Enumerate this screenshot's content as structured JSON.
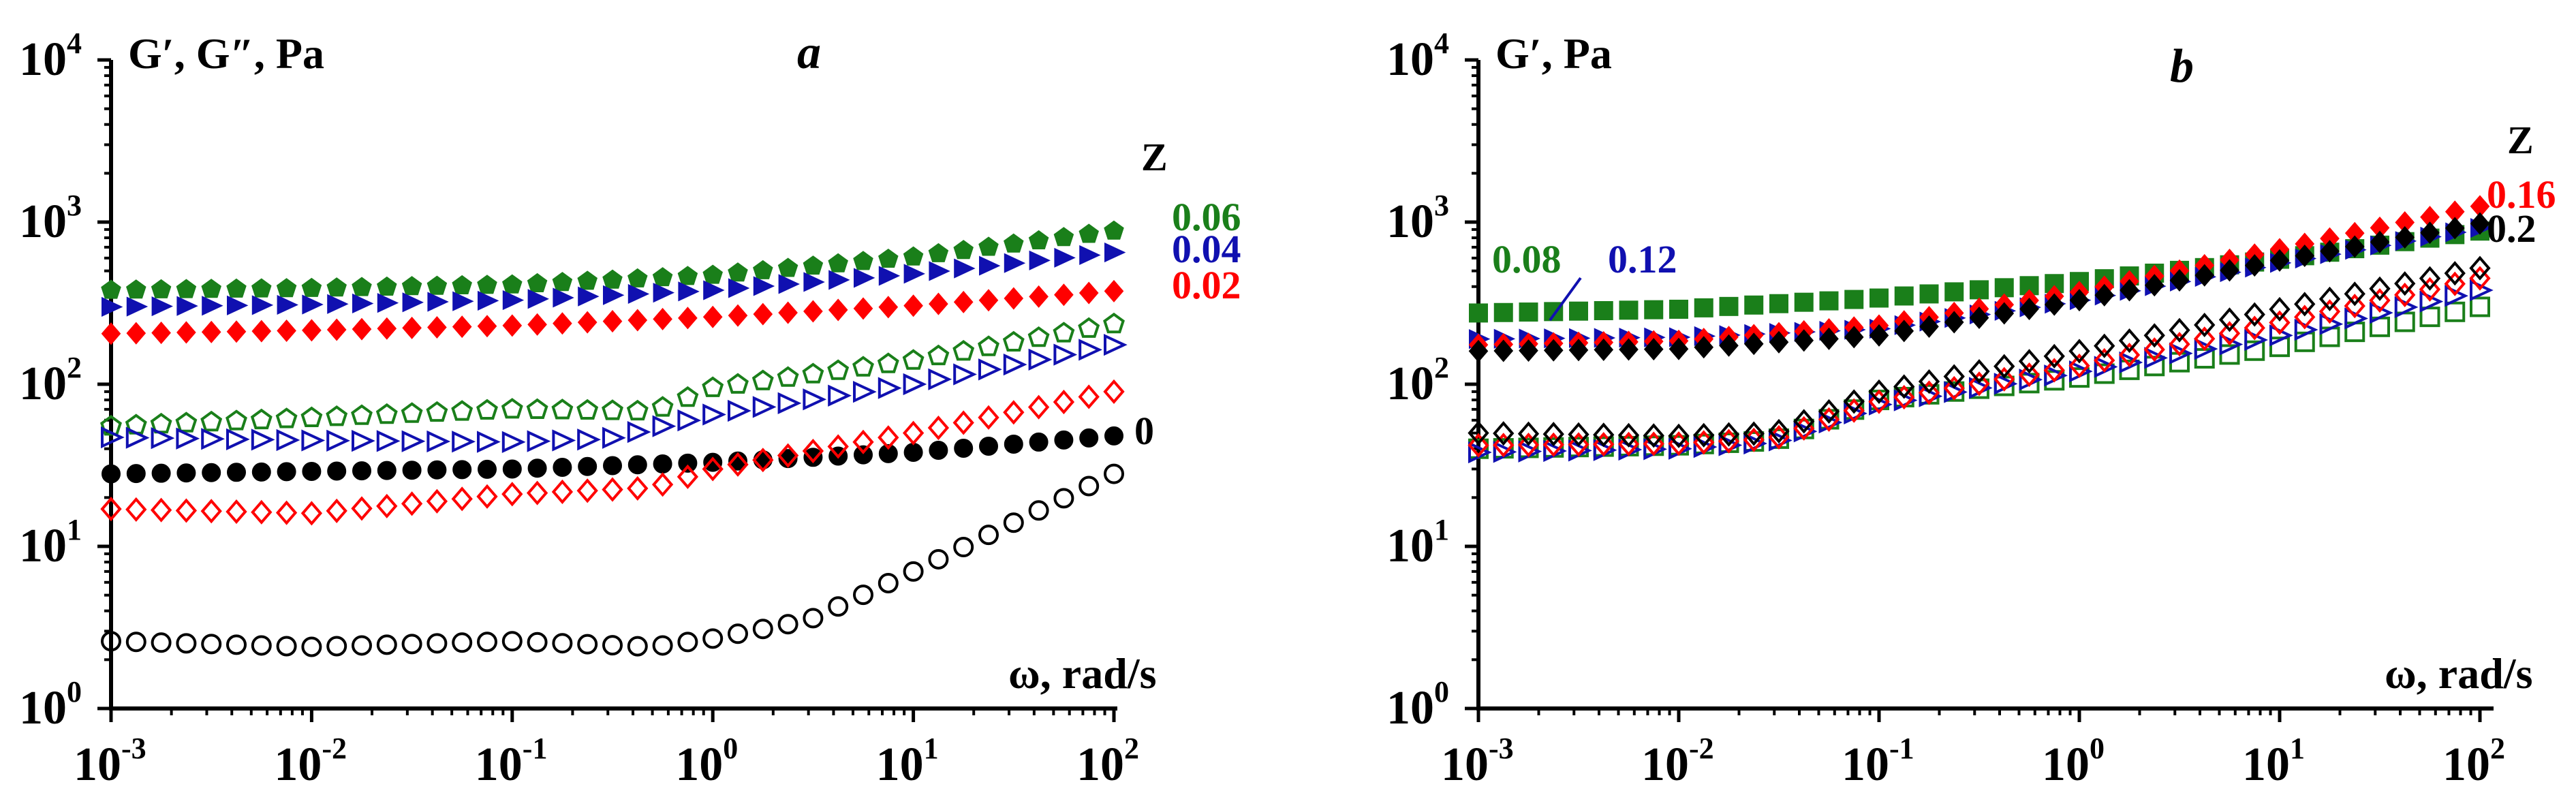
{
  "chart_data": [
    {
      "type": "scatter",
      "title": "a",
      "ylabel": "G′,  G″, Pa",
      "xlabel": "ω, rad/s",
      "legend_title": "Z",
      "x_scale": "log",
      "y_scale": "log",
      "xlim": [
        0.001,
        100
      ],
      "ylim": [
        1,
        10000
      ],
      "x_ticks": [
        {
          "base": "10",
          "exp": "-3"
        },
        {
          "base": "10",
          "exp": "-2"
        },
        {
          "base": "10",
          "exp": "-1"
        },
        {
          "base": "10",
          "exp": "0"
        },
        {
          "base": "10",
          "exp": "1"
        },
        {
          "base": "10",
          "exp": "2"
        }
      ],
      "y_ticks": [
        {
          "base": "10",
          "exp": "0"
        },
        {
          "base": "10",
          "exp": "1"
        },
        {
          "base": "10",
          "exp": "2"
        },
        {
          "base": "10",
          "exp": "3"
        },
        {
          "base": "10",
          "exp": "4"
        }
      ],
      "series": [
        {
          "name": "G′ Z=0.06",
          "label": "0.06",
          "color": "#1a7f1a",
          "marker": "pentagon",
          "filled": true,
          "points": [
            [
              0.001,
              380
            ],
            [
              0.01,
              390
            ],
            [
              0.1,
              410
            ],
            [
              1,
              470
            ],
            [
              10,
              610
            ],
            [
              100,
              880
            ]
          ]
        },
        {
          "name": "G′ Z=0.04",
          "label": "0.04",
          "color": "#1010b0",
          "marker": "triangle-right",
          "filled": true,
          "points": [
            [
              0.001,
              300
            ],
            [
              0.01,
              310
            ],
            [
              0.1,
              330
            ],
            [
              1,
              380
            ],
            [
              10,
              480
            ],
            [
              100,
              650
            ]
          ]
        },
        {
          "name": "G′ Z=0.02",
          "label": "0.02",
          "color": "#ff0000",
          "marker": "diamond",
          "filled": true,
          "points": [
            [
              0.001,
              205
            ],
            [
              0.01,
              215
            ],
            [
              0.1,
              230
            ],
            [
              1,
              260
            ],
            [
              10,
              305
            ],
            [
              100,
              375
            ]
          ]
        },
        {
          "name": "G′ Z=0",
          "label": "0",
          "color": "#000000",
          "marker": "circle",
          "filled": true,
          "points": [
            [
              0.001,
              28
            ],
            [
              0.01,
              29
            ],
            [
              0.1,
              30
            ],
            [
              1,
              33
            ],
            [
              10,
              38
            ],
            [
              100,
              48
            ]
          ]
        },
        {
          "name": "G″ Z=0.06",
          "label": "",
          "color": "#1a7f1a",
          "marker": "pentagon",
          "filled": false,
          "points": [
            [
              0.001,
              55
            ],
            [
              0.01,
              62
            ],
            [
              0.1,
              70
            ],
            [
              0.5,
              68
            ],
            [
              1,
              95
            ],
            [
              10,
              140
            ],
            [
              100,
              235
            ]
          ]
        },
        {
          "name": "G″ Z=0.04",
          "label": "",
          "color": "#1010b0",
          "marker": "triangle-right",
          "filled": false,
          "points": [
            [
              0.001,
              47
            ],
            [
              0.01,
              45
            ],
            [
              0.1,
              44
            ],
            [
              0.3,
              46
            ],
            [
              1,
              65
            ],
            [
              10,
              100
            ],
            [
              100,
              175
            ]
          ]
        },
        {
          "name": "G″ Z=0.02",
          "label": "",
          "color": "#ff0000",
          "marker": "diamond",
          "filled": false,
          "points": [
            [
              0.001,
              17
            ],
            [
              0.01,
              16
            ],
            [
              0.1,
              21
            ],
            [
              0.5,
              23
            ],
            [
              1,
              30
            ],
            [
              10,
              50
            ],
            [
              100,
              90
            ]
          ]
        },
        {
          "name": "G″ Z=0",
          "label": "",
          "color": "#000000",
          "marker": "circle",
          "filled": false,
          "points": [
            [
              0.001,
              2.6
            ],
            [
              0.01,
              2.4
            ],
            [
              0.1,
              2.6
            ],
            [
              0.5,
              2.4
            ],
            [
              1,
              2.7
            ],
            [
              3,
              3.5
            ],
            [
              10,
              7
            ],
            [
              100,
              28
            ]
          ]
        }
      ]
    },
    {
      "type": "scatter",
      "title": "b",
      "ylabel": "G′, Pa",
      "xlabel": "ω, rad/s",
      "legend_title": "Z",
      "x_scale": "log",
      "y_scale": "log",
      "xlim": [
        0.001,
        100
      ],
      "ylim": [
        1,
        10000
      ],
      "x_ticks": [
        {
          "base": "10",
          "exp": "-3"
        },
        {
          "base": "10",
          "exp": "-2"
        },
        {
          "base": "10",
          "exp": "-1"
        },
        {
          "base": "10",
          "exp": "0"
        },
        {
          "base": "10",
          "exp": "1"
        },
        {
          "base": "10",
          "exp": "2"
        }
      ],
      "y_ticks": [
        {
          "base": "10",
          "exp": "0"
        },
        {
          "base": "10",
          "exp": "1"
        },
        {
          "base": "10",
          "exp": "2"
        },
        {
          "base": "10",
          "exp": "3"
        },
        {
          "base": "10",
          "exp": "4"
        }
      ],
      "series": [
        {
          "name": "G′ Z=0.08",
          "label": "0.08",
          "color": "#1a7f1a",
          "marker": "square",
          "filled": true,
          "points": [
            [
              0.001,
              275
            ],
            [
              0.01,
              290
            ],
            [
              0.1,
              340
            ],
            [
              1,
              430
            ],
            [
              10,
              590
            ],
            [
              100,
              880
            ]
          ]
        },
        {
          "name": "G′ Z=0.12",
          "label": "0.12",
          "color": "#1010b0",
          "marker": "triangle-right",
          "filled": true,
          "points": [
            [
              0.001,
              190
            ],
            [
              0.01,
              195
            ],
            [
              0.1,
              220
            ],
            [
              1,
              330
            ],
            [
              10,
              560
            ],
            [
              100,
              920
            ]
          ]
        },
        {
          "name": "G′ Z=0.16",
          "label": "0.16",
          "color": "#ff0000",
          "marker": "diamond",
          "filled": true,
          "points": [
            [
              0.001,
              175
            ],
            [
              0.01,
              185
            ],
            [
              0.1,
              230
            ],
            [
              1,
              370
            ],
            [
              10,
              680
            ],
            [
              100,
              1250
            ]
          ]
        },
        {
          "name": "G′ Z=0.2",
          "label": "0.2",
          "color": "#000000",
          "marker": "diamond",
          "filled": true,
          "points": [
            [
              0.001,
              160
            ],
            [
              0.01,
              165
            ],
            [
              0.1,
              200
            ],
            [
              1,
              330
            ],
            [
              10,
              580
            ],
            [
              100,
              980
            ]
          ]
        },
        {
          "name": "G″ Z=0.08",
          "label": "",
          "color": "#1a7f1a",
          "marker": "square",
          "filled": false,
          "points": [
            [
              0.001,
              40
            ],
            [
              0.01,
              42
            ],
            [
              0.03,
              45
            ],
            [
              0.1,
              80
            ],
            [
              1,
              110
            ],
            [
              10,
              170
            ],
            [
              100,
              300
            ]
          ]
        },
        {
          "name": "G″ Z=0.12",
          "label": "",
          "color": "#1010b0",
          "marker": "triangle-right",
          "filled": false,
          "points": [
            [
              0.001,
              38
            ],
            [
              0.01,
              40
            ],
            [
              0.03,
              44
            ],
            [
              0.1,
              75
            ],
            [
              1,
              120
            ],
            [
              10,
              200
            ],
            [
              100,
              380
            ]
          ]
        },
        {
          "name": "G″ Z=0.16",
          "label": "",
          "color": "#ff0000",
          "marker": "diamond",
          "filled": false,
          "points": [
            [
              0.001,
              42
            ],
            [
              0.01,
              43
            ],
            [
              0.03,
              46
            ],
            [
              0.1,
              78
            ],
            [
              1,
              130
            ],
            [
              10,
              240
            ],
            [
              100,
              450
            ]
          ]
        },
        {
          "name": "G″ Z=0.2",
          "label": "",
          "color": "#000000",
          "marker": "diamond",
          "filled": false,
          "points": [
            [
              0.001,
              50
            ],
            [
              0.01,
              48
            ],
            [
              0.03,
              50
            ],
            [
              0.1,
              90
            ],
            [
              1,
              160
            ],
            [
              10,
              290
            ],
            [
              100,
              520
            ]
          ]
        }
      ]
    }
  ]
}
